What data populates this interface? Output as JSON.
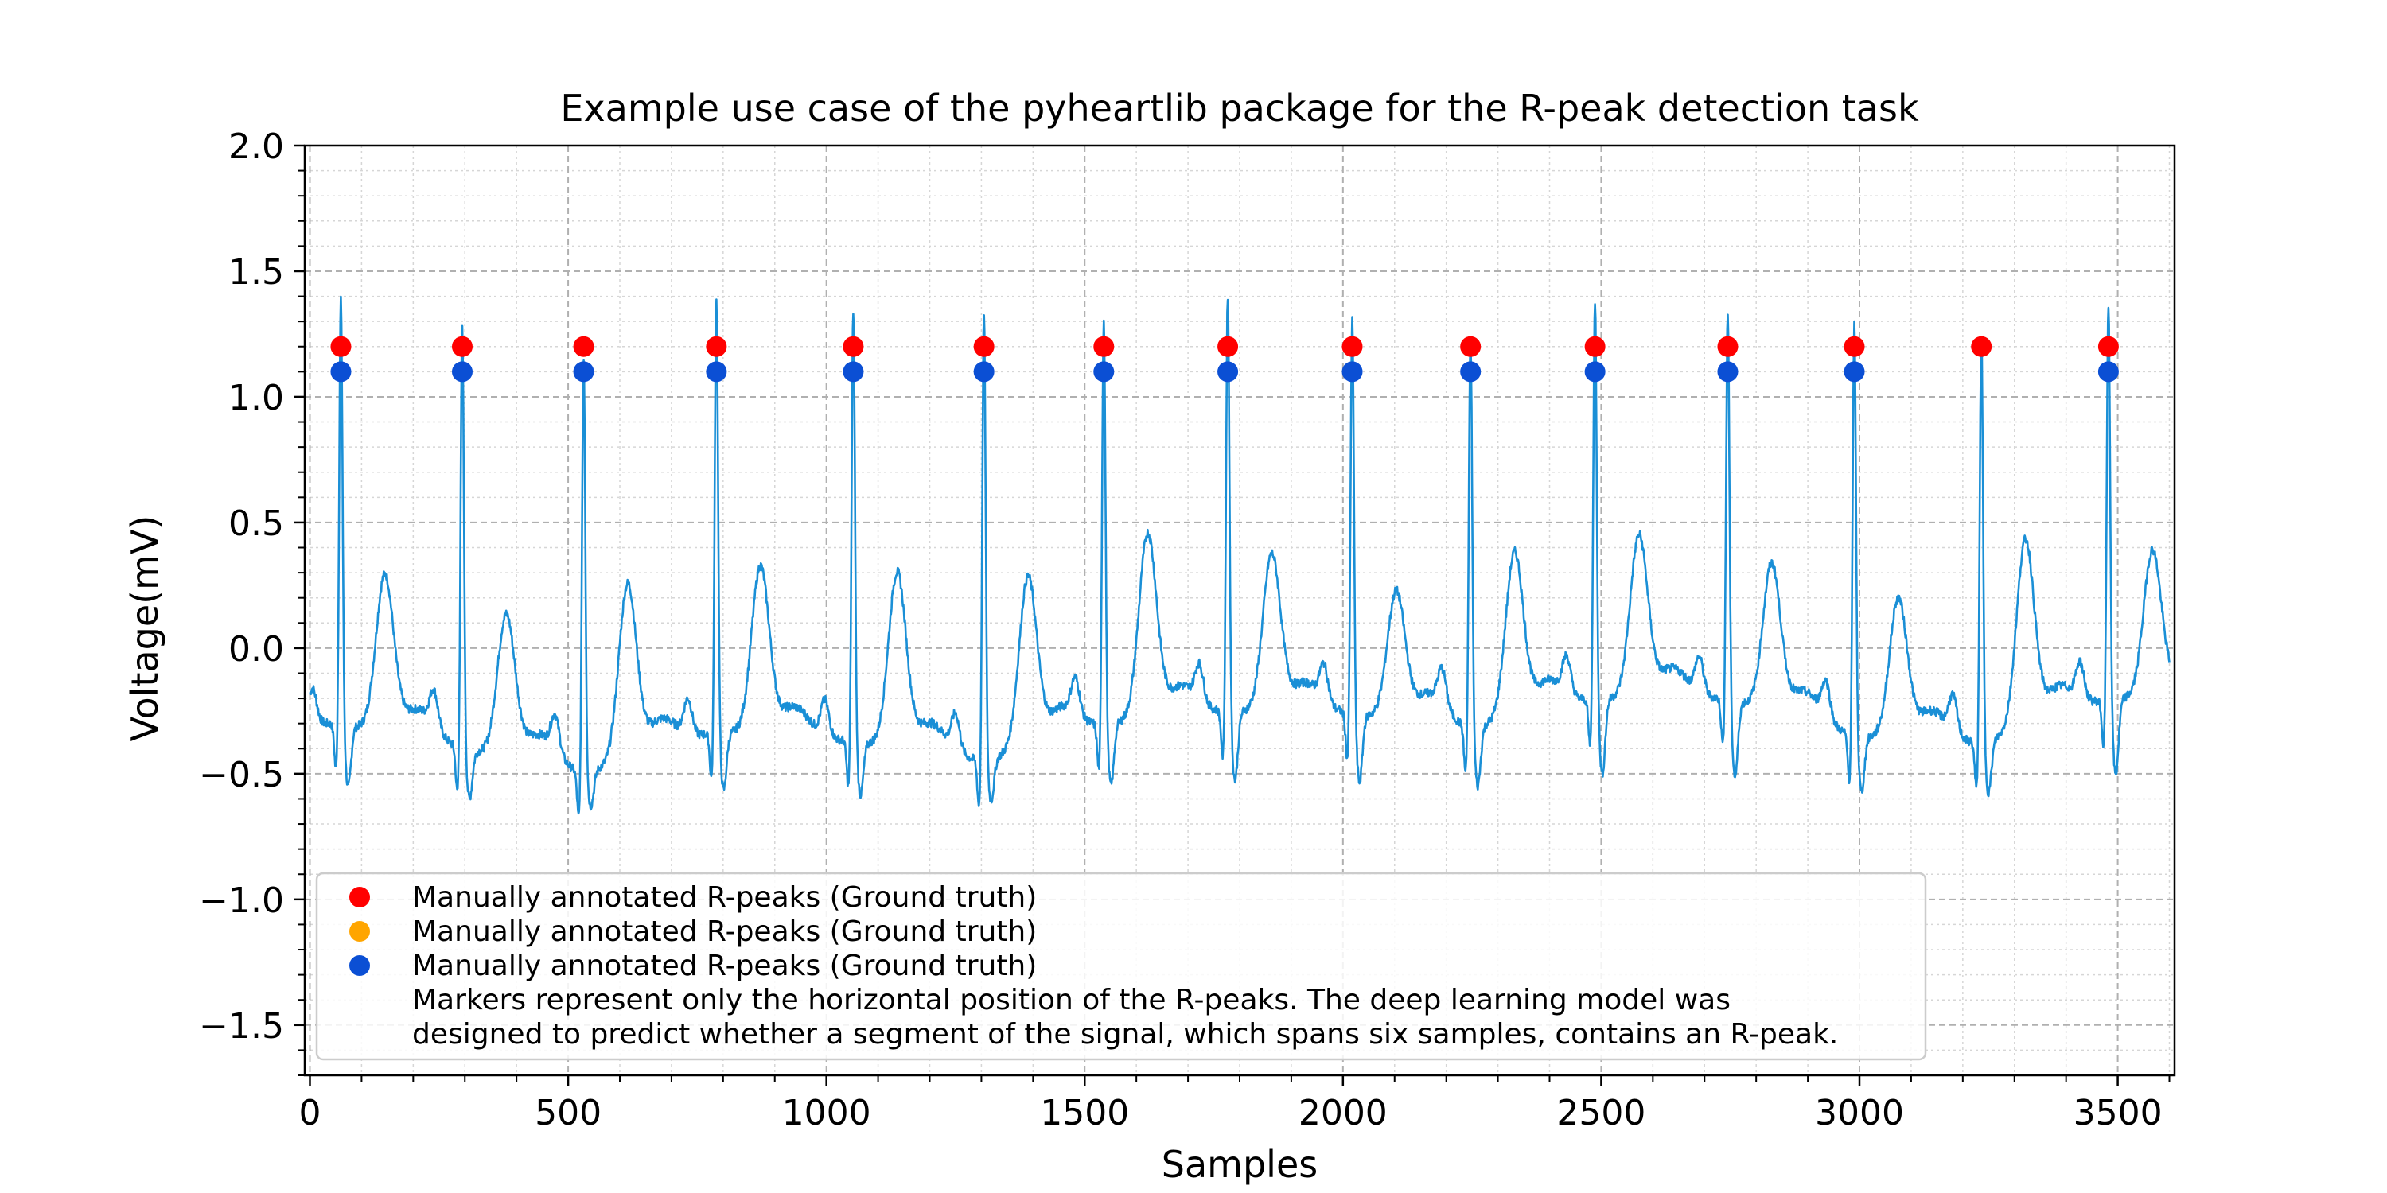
{
  "chart_data": {
    "type": "line",
    "title": "Example use case of the pyheartlib package for the R-peak detection task",
    "xlabel": "Samples",
    "ylabel": "Voltage(mV)",
    "xlim": [
      -10,
      3610
    ],
    "ylim": [
      -1.7,
      2.0
    ],
    "x_ticks": [
      0,
      500,
      1000,
      1500,
      2000,
      2500,
      3000,
      3500
    ],
    "y_ticks": [
      -1.5,
      -1.0,
      -0.5,
      0.0,
      0.5,
      1.0,
      1.5,
      2.0
    ],
    "x_tick_labels": [
      "0",
      "500",
      "1000",
      "1500",
      "2000",
      "2500",
      "3000",
      "3500"
    ],
    "y_tick_labels": [
      "−1.5",
      "−1.0",
      "−0.5",
      "0.0",
      "0.5",
      "1.0",
      "1.5",
      "2.0"
    ],
    "grid": true,
    "signal": {
      "color": "#1a8fd6",
      "beats": [
        {
          "r": 60,
          "amp": 1.4,
          "base": -0.3,
          "t": 0.32
        },
        {
          "r": 295,
          "amp": 1.28,
          "base": -0.4,
          "t": 0.16
        },
        {
          "r": 530,
          "amp": 1.16,
          "base": -0.5,
          "t": 0.19
        },
        {
          "r": 787,
          "amp": 1.4,
          "base": -0.33,
          "t": 0.33
        },
        {
          "r": 1052,
          "amp": 1.36,
          "base": -0.37,
          "t": 0.32
        },
        {
          "r": 1305,
          "amp": 1.34,
          "base": -0.45,
          "t": 0.22
        },
        {
          "r": 1537,
          "amp": 1.32,
          "base": -0.3,
          "t": 0.43
        },
        {
          "r": 1777,
          "amp": 1.42,
          "base": -0.25,
          "t": 0.37
        },
        {
          "r": 2018,
          "amp": 1.32,
          "base": -0.26,
          "t": 0.24
        },
        {
          "r": 2247,
          "amp": 1.24,
          "base": -0.32,
          "t": 0.33
        },
        {
          "r": 2488,
          "amp": 1.4,
          "base": -0.2,
          "t": 0.44
        },
        {
          "r": 2745,
          "amp": 1.35,
          "base": -0.2,
          "t": 0.38
        },
        {
          "r": 2990,
          "amp": 1.3,
          "base": -0.35,
          "t": 0.2
        },
        {
          "r": 3236,
          "amp": 1.24,
          "base": -0.38,
          "t": 0.36
        },
        {
          "r": 3482,
          "amp": 1.38,
          "base": -0.2,
          "t": 0.38
        }
      ]
    },
    "series": [
      {
        "name": "Manually annotated R-peaks (Ground truth)",
        "type": "scatter",
        "color": "#ff0000",
        "x": [
          60,
          295,
          530,
          787,
          1052,
          1305,
          1537,
          1777,
          2018,
          2247,
          2488,
          2745,
          2990,
          3236,
          3482
        ],
        "y": [
          1.2,
          1.2,
          1.2,
          1.2,
          1.2,
          1.2,
          1.2,
          1.2,
          1.2,
          1.2,
          1.2,
          1.2,
          1.2,
          1.2,
          1.2
        ]
      },
      {
        "name": "Manually annotated R-peaks (Ground truth)",
        "type": "scatter",
        "color": "#ffa500",
        "x": [],
        "y": []
      },
      {
        "name": "Manually annotated R-peaks (Ground truth)",
        "type": "scatter",
        "color": "#0b4fd4",
        "x": [
          60,
          295,
          530,
          787,
          1052,
          1305,
          1537,
          1777,
          2018,
          2247,
          2488,
          2745,
          2990,
          3482
        ],
        "y": [
          1.1,
          1.1,
          1.1,
          1.1,
          1.1,
          1.1,
          1.1,
          1.1,
          1.1,
          1.1,
          1.1,
          1.1,
          1.1,
          1.1
        ]
      }
    ],
    "legend": {
      "placement": "lower-left",
      "entries": [
        "Manually annotated R-peaks (Ground truth)",
        "Manually annotated R-peaks (Ground truth)",
        "Manually annotated R-peaks (Ground truth)"
      ],
      "note_line1": "Markers represent only the horizontal position of the R-peaks. The deep learning model was",
      "note_line2": "designed to predict whether a segment of the signal, which spans six samples, contains an R-peak."
    }
  }
}
